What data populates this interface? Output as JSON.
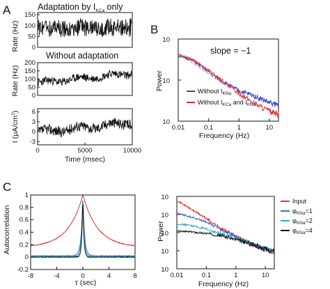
{
  "panel_labels": {
    "a": "A",
    "b": "B",
    "c": "C"
  },
  "chart_data": [
    {
      "id": "A1",
      "type": "line",
      "title": "Adaptation by I",
      "title_sub": "KCa",
      "title_tail": " only",
      "ylabel": "Rate (Hz)",
      "yticks": [
        "0",
        "50",
        "100",
        "150"
      ],
      "ylim": [
        0,
        160
      ],
      "xlim": [
        0,
        10000
      ],
      "grid": false,
      "legend": "none",
      "series": [
        {
          "color": "#111111",
          "mean": 90,
          "amp": 45,
          "trend": 0,
          "noise": "fast"
        }
      ]
    },
    {
      "id": "A2",
      "type": "line",
      "title": "Without adaptation",
      "ylabel": "Rate (Hz)",
      "yticks": [
        "0",
        "50",
        "100",
        "150",
        "200"
      ],
      "ylim": [
        0,
        200
      ],
      "xlim": [
        0,
        10000
      ],
      "grid": false,
      "legend": "none",
      "series": [
        {
          "color": "#111111",
          "mean": 100,
          "amp": 25,
          "trend": 60,
          "noise": "slow"
        }
      ]
    },
    {
      "id": "A3",
      "type": "line",
      "ylabel": "I (μA/cm",
      "ylabel_sup": "2",
      "ylabel_tail": ")",
      "yticks": [
        "-3",
        "0",
        "3",
        "6"
      ],
      "ylim": [
        -4,
        7
      ],
      "xlabel": "Time (msec)",
      "xticks": [
        "0",
        "5000",
        "10000"
      ],
      "xlim": [
        0,
        10000
      ],
      "grid": false,
      "legend": "none",
      "series": [
        {
          "color": "#111111",
          "mean": 1,
          "amp": 1.6,
          "trend": 3,
          "noise": "slow"
        }
      ]
    },
    {
      "id": "B",
      "type": "line",
      "xlabel": "Frequency (Hz)",
      "ylabel": "Power",
      "xticks": [
        "0.01",
        "0.1",
        "1",
        "10"
      ],
      "xlim": [
        0.01,
        20
      ],
      "xscale": "log",
      "yticks_base": "10",
      "yticks_exp": [
        "0",
        "2",
        "4"
      ],
      "ylim": [
        1,
        10000
      ],
      "yscale": "log",
      "annotation": "slope = −1",
      "guide_line": {
        "slope": -1,
        "color": "#e87070",
        "style": "dashed",
        "x": [
          0.01,
          0.5
        ],
        "y": [
          2000,
          40
        ]
      },
      "legend": "bottom-right",
      "series": [
        {
          "name": "Without I",
          "name_sub": "KNa",
          "color": "#3344cc",
          "x": [
            0.01,
            0.03,
            0.1,
            0.3,
            1,
            3,
            10,
            20
          ],
          "y": [
            1500,
            900,
            250,
            80,
            30,
            18,
            8,
            6
          ]
        },
        {
          "name": "Without I",
          "name_sub": "KCa",
          "name_tail": " and I",
          "name_sub2": "KNa",
          "color": "#e23030",
          "x": [
            0.01,
            0.03,
            0.1,
            0.3,
            1,
            3,
            10,
            20
          ],
          "y": [
            1800,
            1000,
            300,
            90,
            22,
            8,
            3,
            2
          ]
        }
      ]
    },
    {
      "id": "C1",
      "type": "line",
      "xlabel": "τ (sec)",
      "ylabel": "Autocorrelation",
      "xticks": [
        "-8",
        "-4",
        "0",
        "4",
        "8"
      ],
      "xlim": [
        -8,
        8
      ],
      "yticks": [
        "-0.2",
        "0",
        "0.2",
        "0.4",
        "0.6",
        "0.8",
        "1"
      ],
      "ylim": [
        -0.2,
        1
      ],
      "grid": false,
      "legend": "none",
      "series": [
        {
          "name": "Input",
          "color": "#e23030",
          "peak": 1.0,
          "base": 0.2,
          "tau": 2.2
        },
        {
          "name": "φ=1",
          "color": "#4466cc",
          "peak": 1.0,
          "base": 0.02,
          "tau": 0.25
        },
        {
          "name": "φ=2",
          "color": "#33aacc",
          "peak": 1.0,
          "base": 0.01,
          "tau": 0.2
        },
        {
          "name": "φ=4",
          "color": "#111111",
          "peak": 1.0,
          "base": 0.0,
          "tau": 0.15
        }
      ]
    },
    {
      "id": "C2",
      "type": "line",
      "xlabel": "Frequency (Hz)",
      "ylabel": "Power",
      "xticks": [
        "0.01",
        "0.1",
        "1",
        "10"
      ],
      "xlim": [
        0.01,
        20
      ],
      "xscale": "log",
      "yticks_base": "10",
      "yticks_exp": [
        "-1",
        "0",
        "1",
        "2",
        "3"
      ],
      "ylim": [
        0.1,
        1000
      ],
      "yscale": "log",
      "legend": "right",
      "series": [
        {
          "name": "Input",
          "color": "#e23030",
          "x": [
            0.01,
            0.03,
            0.1,
            0.3,
            1,
            3,
            10,
            20
          ],
          "y": [
            600,
            200,
            60,
            18,
            6,
            2.5,
            1.2,
            0.9
          ]
        },
        {
          "name": "φ",
          "name_sub": "KNa",
          "name_tail": "=1",
          "color": "#4466cc",
          "x": [
            0.01,
            0.03,
            0.1,
            0.3,
            1,
            3,
            10,
            20
          ],
          "y": [
            120,
            70,
            40,
            15,
            6,
            2.5,
            1.2,
            0.9
          ]
        },
        {
          "name": "φ",
          "name_sub": "KNa",
          "name_tail": "=2",
          "color": "#33aacc",
          "x": [
            0.01,
            0.03,
            0.1,
            0.3,
            1,
            3,
            10,
            20
          ],
          "y": [
            30,
            25,
            15,
            9,
            5,
            2.5,
            1.2,
            0.9
          ]
        },
        {
          "name": "φ",
          "name_sub": "KNa",
          "name_tail": "=4",
          "color": "#111111",
          "x": [
            0.01,
            0.03,
            0.1,
            0.3,
            1,
            3,
            10,
            20
          ],
          "y": [
            12,
            11,
            9,
            7,
            4,
            2.5,
            1.2,
            0.9
          ]
        }
      ]
    }
  ]
}
